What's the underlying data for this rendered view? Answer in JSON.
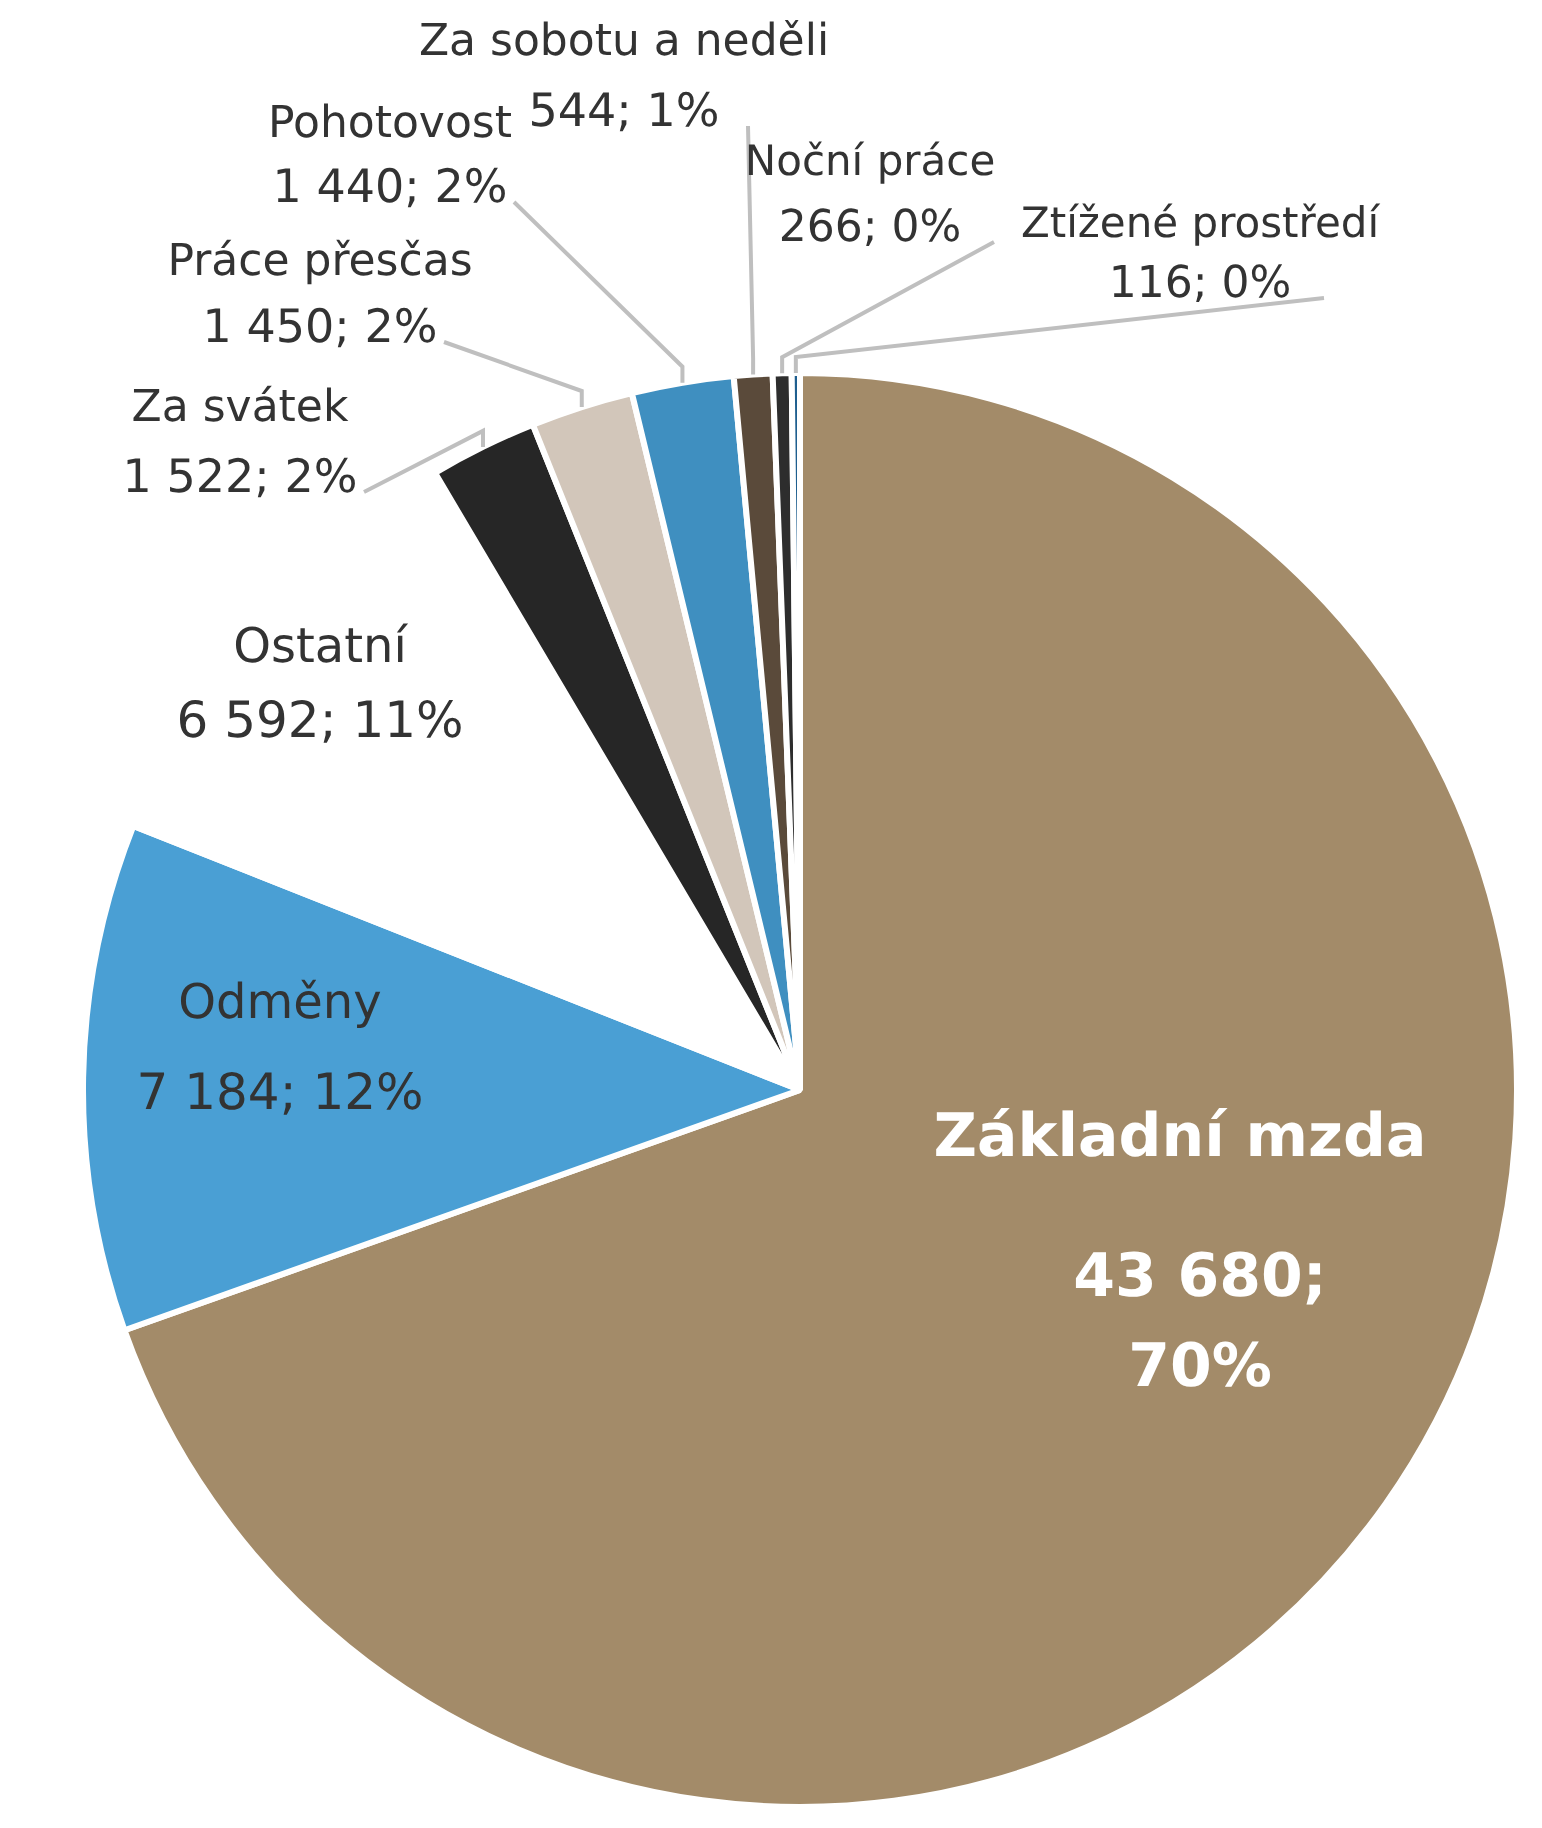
{
  "chart_data": {
    "type": "pie",
    "categories": [
      "Základní mzda",
      "Odměny",
      "Ostatní",
      "Za svátek",
      "Práce přesčas",
      "Pohotovost",
      "Za sobotu a neděli",
      "Noční práce",
      "Ztížené prostředí"
    ],
    "values": [
      43680,
      7184,
      6592,
      1522,
      1450,
      1440,
      544,
      266,
      116
    ],
    "colors": [
      "#a38b69",
      "#4a9fd4",
      "#ffffff",
      "#262626",
      "#d2c6ba",
      "#3f8fc0",
      "#5a4a3a",
      "#2d2d2d",
      "#1f5f8f"
    ],
    "value_labels": [
      "43 680; 70%",
      "7 184; 12%",
      "6 592; 11%",
      "1 522; 2%",
      "1 450; 2%",
      "1 440; 2%",
      "544; 1%",
      "266; 0%",
      "116; 0%"
    ],
    "legend": false
  }
}
